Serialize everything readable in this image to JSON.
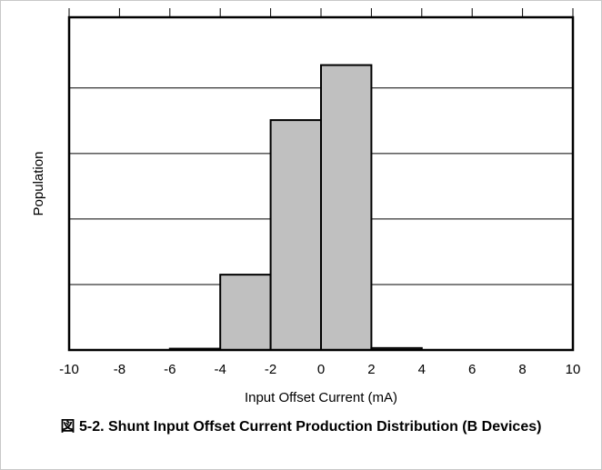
{
  "chart_data": {
    "type": "histogram",
    "xlabel": "Input Offset Current (mA)",
    "ylabel": "Population",
    "caption": "図 5-2. Shunt Input Offset Current Production Distribution (B Devices)",
    "bins": [
      -10,
      -8,
      -6,
      -4,
      -2,
      0,
      2,
      4,
      6,
      8,
      10
    ],
    "values": [
      0,
      0,
      0.02,
      1.15,
      3.51,
      4.35,
      0.03,
      0,
      0,
      0
    ],
    "color": "#c0c0c0",
    "xlim": [
      -10,
      10
    ],
    "xticks": [
      -10,
      -8,
      -6,
      -4,
      -2,
      0,
      2,
      4,
      6,
      8,
      10
    ],
    "ylim": [
      0,
      5.08
    ],
    "yticks": [
      1,
      2,
      3,
      4
    ],
    "grid": true
  }
}
